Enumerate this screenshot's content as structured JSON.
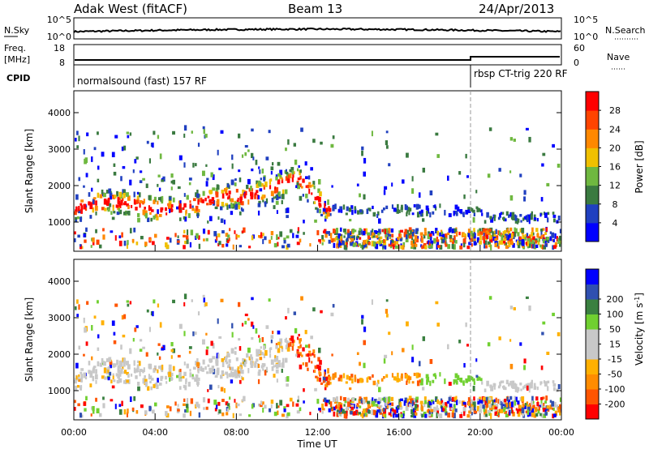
{
  "header": {
    "station": "Adak West (fitACF)",
    "beam": "Beam 13",
    "date": "24/Apr/2013"
  },
  "labels": {
    "nsky": "N.Sky",
    "nsearch": "N.Search",
    "freq": "Freq.",
    "freq_unit": "[MHz]",
    "nave": "Nave",
    "cpid": "CPID",
    "cpid_1": "normalsound (fast) 157 RF",
    "cpid_2": "rbsp CT-trig 220 RF"
  },
  "noise_ticks": {
    "top": "10^5",
    "bottom": "10^0"
  },
  "freq_ticks": {
    "top": "18",
    "bottom": "8"
  },
  "nave_ticks": {
    "top": "60",
    "bottom": "0"
  },
  "colors": {
    "power_scale": [
      "#0000ff",
      "#2040c0",
      "#3a7a40",
      "#6fb840",
      "#f0c000",
      "#ff8800",
      "#ff4400",
      "#ff0000"
    ],
    "velocity_scale": [
      "#ff0000",
      "#ff5500",
      "#ff8c00",
      "#ffb000",
      "#c8c8c8",
      "#c8c8c8",
      "#70d030",
      "#3a8040",
      "#3050b0",
      "#0000ff"
    ]
  },
  "chart_data": [
    {
      "type": "heatmap",
      "name": "power",
      "ylabel": "Slant Range [km]",
      "xlabel": "Time UT",
      "yticks": [
        "1000",
        "2000",
        "3000",
        "4000"
      ],
      "ylim": [
        200,
        4600
      ],
      "xticks": [
        "00:00",
        "04:00",
        "08:00",
        "12:00",
        "16:00",
        "20:00",
        "00:00"
      ],
      "xlim_hours": [
        0,
        24
      ],
      "colorbar": {
        "label": "Power [dB]",
        "ticks": [
          "4",
          "8",
          "12",
          "16",
          "20",
          "24",
          "28"
        ],
        "range": [
          0,
          32
        ]
      }
    },
    {
      "type": "heatmap",
      "name": "velocity",
      "ylabel": "Slant Range [km]",
      "xlabel": "Time UT",
      "yticks": [
        "1000",
        "2000",
        "3000",
        "4000"
      ],
      "ylim": [
        200,
        4600
      ],
      "xticks": [
        "00:00",
        "04:00",
        "08:00",
        "12:00",
        "16:00",
        "20:00",
        "00:00"
      ],
      "xlim_hours": [
        0,
        24
      ],
      "colorbar": {
        "label": "Velocity [m s-1]",
        "ticks": [
          "-200",
          "-100",
          "-50",
          "-15",
          "15",
          "50",
          "100",
          "200"
        ]
      }
    }
  ]
}
